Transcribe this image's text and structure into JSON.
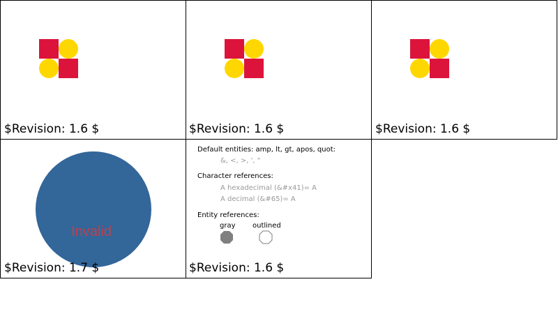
{
  "colors": {
    "crimson": "#DC143C",
    "gold": "#FFD700",
    "steel_blue": "#336699",
    "invalid_text": "#C0404A",
    "gray": "#808080"
  },
  "panels": [
    {
      "revision": "$Revision: 1.6 $"
    },
    {
      "revision": "$Revision: 1.6 $"
    },
    {
      "revision": "$Revision: 1.6 $"
    },
    {
      "revision": "$Revision: 1.7 $",
      "overlay_text": "Invalid"
    },
    {
      "revision": "$Revision: 1.6 $",
      "default_entities_label": "Default entities: amp, lt, gt, apos, quot:",
      "default_entities_value": "&, <, >, ', \"",
      "char_refs_label": "Character references:",
      "char_ref_hex": "A hexadecimal (&#x41)= A",
      "char_ref_dec": "A decimal (&#65)= A",
      "entity_refs_label": "Entity references:",
      "gray_label": "gray",
      "outlined_label": "outlined"
    }
  ]
}
